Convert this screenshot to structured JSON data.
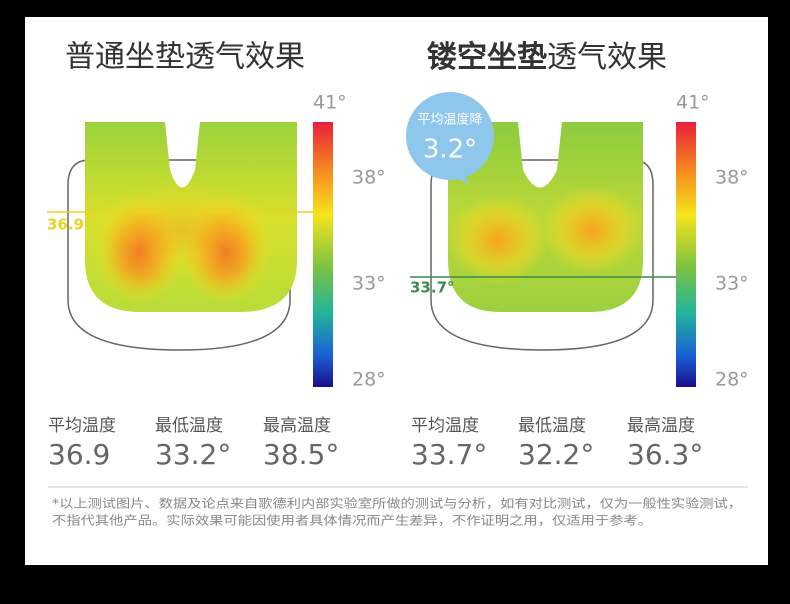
{
  "panels": [
    {
      "title": "普通坐垫透气效果",
      "scale_labels": [
        "41°",
        "38°",
        "33°",
        "28°"
      ],
      "marker": "36.9°",
      "stats": [
        {
          "label": "平均温度",
          "value": "36.9"
        },
        {
          "label": "最低温度",
          "value": "33.2°"
        },
        {
          "label": "最高温度",
          "value": "38.5°"
        }
      ]
    },
    {
      "title_bold": "镂空坐垫",
      "title": "透气效果",
      "badge": {
        "label": "平均温度降",
        "value": "3.2°"
      },
      "scale_labels": [
        "41°",
        "38°",
        "33°",
        "28°"
      ],
      "marker": "33.7°",
      "stats": [
        {
          "label": "平均温度",
          "value": "33.7°"
        },
        {
          "label": "最低温度",
          "value": "32.2°"
        },
        {
          "label": "最高温度",
          "value": "36.3°"
        }
      ]
    }
  ],
  "footnote": [
    "*以上测试图片、数据及论点来自歌德利内部实验室所做的测试与分析，如有对比测试，仅为一般性实验测试，",
    "不指代其他产品。实际效果可能因使用者具体情况而产生差异，不作证明之用，仅适用于参考。"
  ]
}
